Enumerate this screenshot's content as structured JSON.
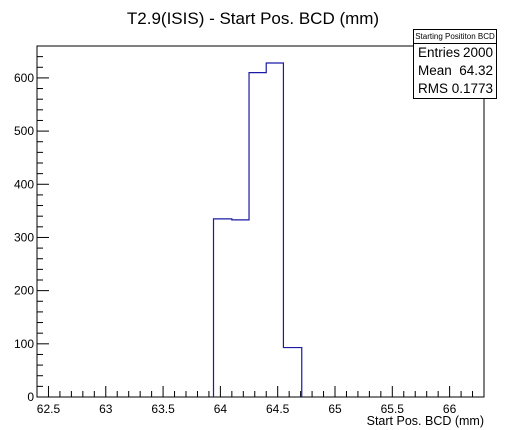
{
  "chart_data": {
    "type": "histogram",
    "title": "T2.9(ISIS) - Start Pos. BCD (mm)",
    "xlabel": "Start Pos. BCD (mm)",
    "ylabel": "",
    "xlim": [
      62.4,
      66.3
    ],
    "ylim": [
      0,
      660
    ],
    "x_ticks": [
      "62.5",
      "63",
      "63.5",
      "64",
      "64.5",
      "65",
      "65.5",
      "66"
    ],
    "x_tick_values": [
      62.5,
      63,
      63.5,
      64,
      64.5,
      65,
      65.5,
      66
    ],
    "y_ticks": [
      "0",
      "100",
      "200",
      "300",
      "400",
      "500",
      "600"
    ],
    "y_tick_values": [
      0,
      100,
      200,
      300,
      400,
      500,
      600
    ],
    "bins": [
      {
        "low": 63.94,
        "high": 64.1,
        "value": 335
      },
      {
        "low": 64.1,
        "high": 64.25,
        "value": 333
      },
      {
        "low": 64.25,
        "high": 64.4,
        "value": 610
      },
      {
        "low": 64.4,
        "high": 64.55,
        "value": 628
      },
      {
        "low": 64.55,
        "high": 64.71,
        "value": 93
      }
    ],
    "line_color": "#1a1aa6",
    "grid": false
  },
  "stats": {
    "title": "Starting Posititon BCD",
    "rows": [
      {
        "label": "Entries",
        "value": "2000"
      },
      {
        "label": "Mean",
        "value": "64.32"
      },
      {
        "label": "RMS",
        "value": "0.1773"
      }
    ]
  }
}
